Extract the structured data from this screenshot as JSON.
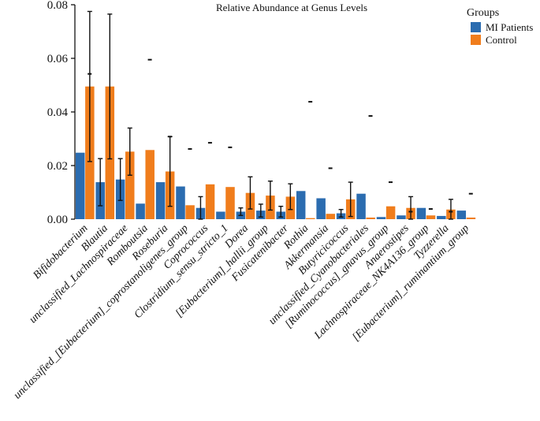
{
  "chart_data": {
    "type": "bar",
    "title": "Relative Abundance at Genus Levels",
    "xlabel": "",
    "ylabel": "",
    "ylim": [
      0,
      0.08
    ],
    "yticks": [
      "0.00",
      "0.02",
      "0.04",
      "0.06",
      "0.08"
    ],
    "ytick_values": [
      0,
      0.02,
      0.04,
      0.06,
      0.08
    ],
    "grid": false,
    "legend": {
      "title": "Groups",
      "placement": "top-right"
    },
    "categories": [
      "Bifidobacterium",
      "Blautia",
      "unclassified_Lachnospiraceae",
      "Romboutsia",
      "Roseburia",
      "unclassified_[Eubacterium]_coprostanoligenes_group",
      "Coprococcus",
      "Clostridium_sensu_stricto_1",
      "Dorea",
      "[Eubacterium]_hallii_group",
      "Fusicatenibacter",
      "Rothia",
      "Akkermansia",
      "Butyricicoccus",
      "unclassified_Cyanobacteriales",
      "[Ruminococcus]_gnavus_group",
      "Anaerostipes",
      "Lachnospiraceae_NK4A136_group",
      "Tyzzerella",
      "[Eubacterium]_ruminantium_group"
    ],
    "series": [
      {
        "name": "MI Patients",
        "color": "#2b6cb0",
        "values": [
          0.0248,
          0.0138,
          0.0148,
          0.0058,
          0.0138,
          0.0122,
          0.0042,
          0.0028,
          0.0028,
          0.0032,
          0.0028,
          0.0105,
          0.0078,
          0.0022,
          0.0095,
          0.0008,
          0.0014,
          0.0042,
          0.0012,
          0.0032
        ],
        "errors": [
          0.0,
          0.0088,
          0.0078,
          0.0,
          0.0,
          0.0,
          0.0042,
          0.0,
          0.0014,
          0.0024,
          0.002,
          0.0,
          0.0,
          0.0014,
          0.0,
          0.0,
          0.0,
          0.0,
          0.0,
          0.0
        ]
      },
      {
        "name": "Control",
        "color": "#f07d1c",
        "values": [
          0.0495,
          0.0495,
          0.0252,
          0.0258,
          0.0178,
          0.0052,
          0.013,
          0.012,
          0.0098,
          0.0088,
          0.0084,
          0.0004,
          0.002,
          0.0074,
          0.0006,
          0.0048,
          0.0042,
          0.0014,
          0.0036,
          0.0006
        ],
        "errors": [
          0.028,
          0.027,
          0.0088,
          0.0,
          0.013,
          0.0,
          0.0,
          0.0,
          0.006,
          0.0054,
          0.0048,
          0.0,
          0.0,
          0.0064,
          0.0,
          0.0,
          0.0042,
          0.0,
          0.0038,
          0.0
        ]
      }
    ],
    "significance_dashes": [
      0.0542,
      0.0,
      0.0,
      0.0595,
      0.0308,
      0.0262,
      0.0285,
      0.0268,
      0.0,
      0.0,
      0.0,
      0.0438,
      0.019,
      0.0,
      0.0385,
      0.0138,
      0.0028,
      0.0038,
      0.0028,
      0.0095
    ]
  }
}
